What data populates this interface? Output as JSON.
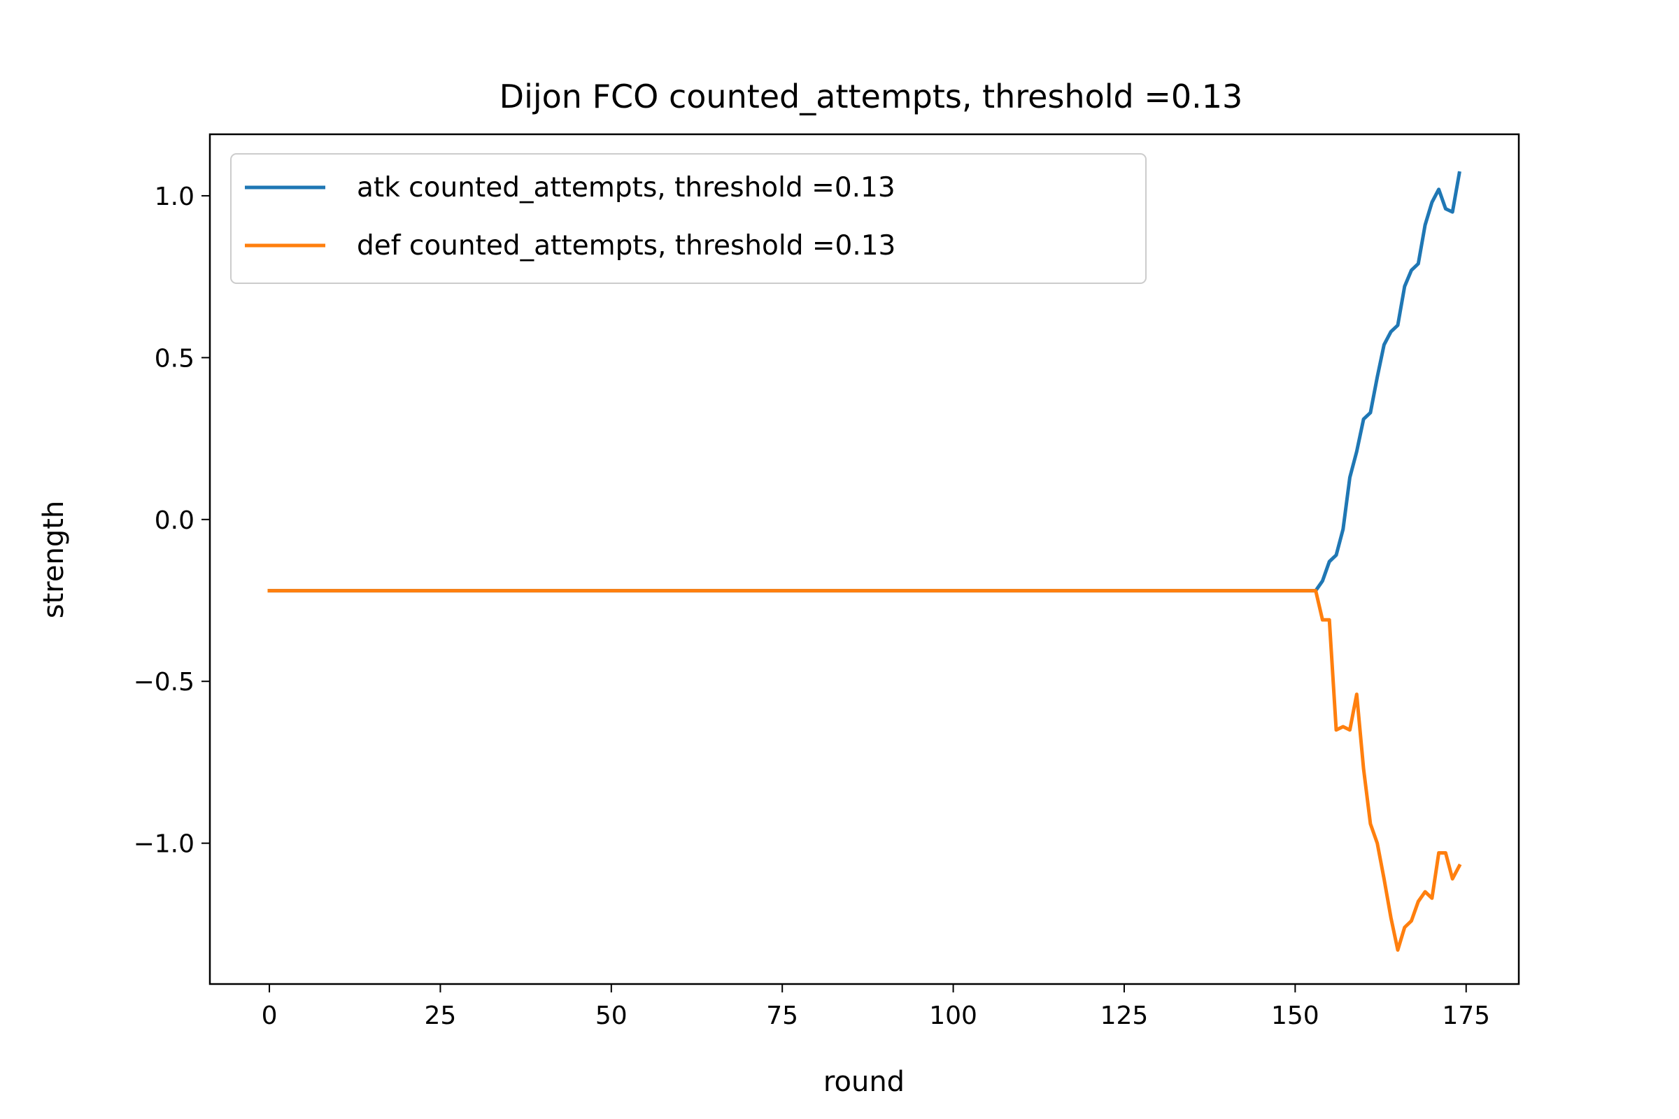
{
  "chart_data": {
    "type": "line",
    "title": "Dijon FCO counted_attempts, threshold =0.13",
    "xlabel": "round",
    "ylabel": "strength",
    "xlim": [
      -8.7,
      182.7
    ],
    "ylim": [
      -1.435,
      1.19
    ],
    "xticks": [
      0,
      25,
      50,
      75,
      100,
      125,
      150,
      175
    ],
    "xtick_labels": [
      "0",
      "25",
      "50",
      "75",
      "100",
      "125",
      "150",
      "175"
    ],
    "yticks": [
      1.0,
      0.5,
      0.0,
      -0.5,
      -1.0
    ],
    "ytick_labels": [
      "1.0",
      "0.5",
      "0.0",
      "−0.5",
      "−1.0"
    ],
    "grid": false,
    "legend_position": "upper-left",
    "series": [
      {
        "name": "atk counted_attempts, threshold =0.13",
        "color": "#1f77b4",
        "points": [
          [
            0,
            -0.22
          ],
          [
            153,
            -0.22
          ],
          [
            154,
            -0.19
          ],
          [
            155,
            -0.13
          ],
          [
            156,
            -0.11
          ],
          [
            157,
            -0.03
          ],
          [
            158,
            0.13
          ],
          [
            159,
            0.21
          ],
          [
            160,
            0.31
          ],
          [
            161,
            0.33
          ],
          [
            162,
            0.44
          ],
          [
            163,
            0.54
          ],
          [
            164,
            0.58
          ],
          [
            165,
            0.6
          ],
          [
            166,
            0.72
          ],
          [
            167,
            0.77
          ],
          [
            168,
            0.79
          ],
          [
            169,
            0.91
          ],
          [
            170,
            0.98
          ],
          [
            171,
            1.02
          ],
          [
            172,
            0.96
          ],
          [
            173,
            0.95
          ],
          [
            174,
            1.07
          ]
        ]
      },
      {
        "name": "def counted_attempts, threshold =0.13",
        "color": "#ff7f0e",
        "points": [
          [
            0,
            -0.22
          ],
          [
            153,
            -0.22
          ],
          [
            154,
            -0.31
          ],
          [
            155,
            -0.31
          ],
          [
            156,
            -0.65
          ],
          [
            157,
            -0.64
          ],
          [
            158,
            -0.65
          ],
          [
            159,
            -0.54
          ],
          [
            160,
            -0.77
          ],
          [
            161,
            -0.94
          ],
          [
            162,
            -1.0
          ],
          [
            163,
            -1.11
          ],
          [
            164,
            -1.23
          ],
          [
            165,
            -1.33
          ],
          [
            166,
            -1.26
          ],
          [
            167,
            -1.24
          ],
          [
            168,
            -1.18
          ],
          [
            169,
            -1.15
          ],
          [
            170,
            -1.17
          ],
          [
            171,
            -1.03
          ],
          [
            172,
            -1.03
          ],
          [
            173,
            -1.11
          ],
          [
            174,
            -1.07
          ]
        ]
      }
    ]
  }
}
